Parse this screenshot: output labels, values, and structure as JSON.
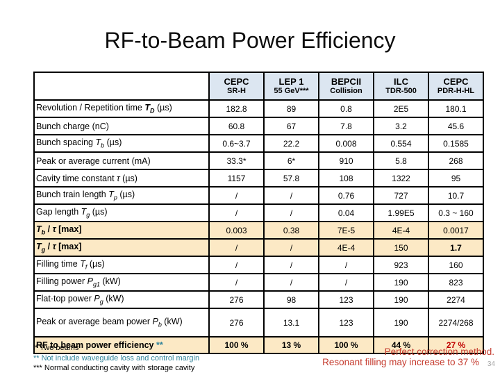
{
  "title": "RF-to-Beam Power Efficiency",
  "colors": {
    "header_bg": "#dce6f1",
    "highlight_bg": "#fce9c5",
    "teal": "#31849b",
    "red": "#c53b2e",
    "dark_red": "#c00000",
    "page_gray": "#a6a6a6"
  },
  "table": {
    "columns": [
      {
        "name": "CEPC",
        "sub": "SR-H"
      },
      {
        "name": "LEP 1",
        "sub": "55 GeV***"
      },
      {
        "name": "BEPCII",
        "sub": "Collision"
      },
      {
        "name": "ILC",
        "sub": "TDR-500"
      },
      {
        "name": "CEPC",
        "sub": "PDR-H-HL"
      }
    ],
    "rows": [
      {
        "label": [
          {
            "t": "Revolution / Repetition time "
          },
          {
            "t": "T",
            "i": true,
            "b": true
          },
          {
            "t": "D",
            "sub": true,
            "b": true,
            "i": true
          },
          {
            "t": " (µs)"
          }
        ],
        "values": [
          "182.8",
          "89",
          "0.8",
          "2E5",
          "180.1"
        ]
      },
      {
        "label": [
          {
            "t": "Bunch charge (nC)"
          }
        ],
        "values": [
          "60.8",
          "67",
          "7.8",
          "3.2",
          "45.6"
        ]
      },
      {
        "label": [
          {
            "t": "Bunch spacing "
          },
          {
            "t": "T",
            "i": true
          },
          {
            "t": "b",
            "sub": true,
            "i": true
          },
          {
            "t": " (µs)"
          }
        ],
        "values": [
          "0.6~3.7",
          "22.2",
          "0.008",
          "0.554",
          "0.1585"
        ]
      },
      {
        "label": [
          {
            "t": "Peak or average current (mA)"
          }
        ],
        "values": [
          "33.3*",
          "6*",
          "910",
          "5.8",
          "268"
        ]
      },
      {
        "label": [
          {
            "t": "Cavity time constant "
          },
          {
            "t": "τ",
            "i": true
          },
          {
            "t": " (µs)"
          }
        ],
        "values": [
          "1157",
          "57.8",
          "108",
          "1322",
          "95"
        ]
      },
      {
        "label": [
          {
            "t": "Bunch train length "
          },
          {
            "t": "T",
            "i": true
          },
          {
            "t": "p",
            "sub": true,
            "i": true
          },
          {
            "t": " (µs)"
          }
        ],
        "values": [
          "/",
          "/",
          "0.76",
          "727",
          "10.7"
        ]
      },
      {
        "label": [
          {
            "t": "Gap length "
          },
          {
            "t": "T",
            "i": true
          },
          {
            "t": "g",
            "sub": true,
            "i": true
          },
          {
            "t": " (µs)"
          }
        ],
        "values": [
          "/",
          "/",
          "0.04",
          "1.99E5",
          "0.3 ~ 160"
        ]
      },
      {
        "highlight": true,
        "label": [
          {
            "t": "T",
            "i": true,
            "b": true
          },
          {
            "t": "b",
            "sub": true,
            "i": true,
            "b": true
          },
          {
            "t": " / ",
            "b": true
          },
          {
            "t": "τ",
            "i": true,
            "b": true
          },
          {
            "t": " [max]",
            "b": true
          }
        ],
        "values": [
          "0.003",
          "0.38",
          "7E-5",
          "4E-4",
          "0.0017"
        ]
      },
      {
        "highlight": true,
        "label": [
          {
            "t": "T",
            "i": true,
            "b": true
          },
          {
            "t": "g",
            "sub": true,
            "i": true,
            "b": true
          },
          {
            "t": " / ",
            "b": true
          },
          {
            "t": "τ",
            "i": true,
            "b": true
          },
          {
            "t": " [max]",
            "b": true
          }
        ],
        "values": [
          "/",
          "/",
          "4E-4",
          "150",
          {
            "t": "1.7",
            "b": true
          }
        ]
      },
      {
        "label": [
          {
            "t": "Filling time "
          },
          {
            "t": "T",
            "i": true
          },
          {
            "t": "f",
            "sub": true,
            "i": true
          },
          {
            "t": " (µs)"
          }
        ],
        "values": [
          "/",
          "/",
          "/",
          "923",
          "160"
        ]
      },
      {
        "label": [
          {
            "t": "Filling power "
          },
          {
            "t": "P",
            "i": true
          },
          {
            "t": "g1",
            "sub": true,
            "i": true
          },
          {
            "t": " (kW)"
          }
        ],
        "values": [
          "/",
          "/",
          "/",
          "190",
          "823"
        ]
      },
      {
        "label": [
          {
            "t": "Flat-top power "
          },
          {
            "t": "P",
            "i": true
          },
          {
            "t": "g",
            "sub": true,
            "i": true
          },
          {
            "t": " (kW)"
          }
        ],
        "values": [
          "276",
          "98",
          "123",
          "190",
          "2274"
        ]
      },
      {
        "tall": true,
        "label": [
          {
            "t": "Peak or average beam power "
          },
          {
            "t": "P",
            "i": true
          },
          {
            "t": "b",
            "sub": true,
            "i": true
          },
          {
            "t": " (kW)"
          }
        ],
        "values": [
          "276",
          "13.1",
          "123",
          "190",
          "2274/268"
        ]
      },
      {
        "highlight": true,
        "emphasis": true,
        "last": true,
        "label": [
          {
            "t": "RF to beam power efficiency "
          },
          {
            "t": "**",
            "c": "teal"
          }
        ],
        "values": [
          "100 %",
          "13 %",
          "100 %",
          "44 %",
          {
            "t": "27 %",
            "c": "red",
            "b": true
          }
        ]
      }
    ]
  },
  "footnotes": [
    {
      "text": "* Two beams"
    },
    {
      "text": "** Not include waveguide loss and control margin"
    },
    {
      "text": "*** Normal conducting cavity with storage cavity"
    }
  ],
  "annotations": {
    "line1": "Perfect correction method.",
    "line2": "Resonant filling may increase to 37 %"
  },
  "page_number": "34"
}
